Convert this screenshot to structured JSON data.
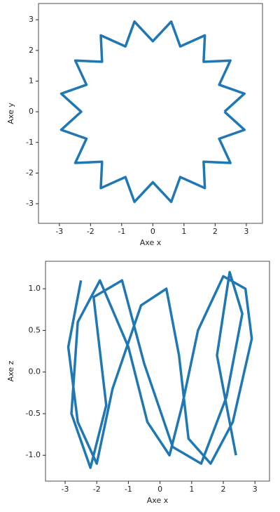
{
  "chart_data": [
    {
      "type": "line",
      "xlabel": "Axe x",
      "ylabel": "Axe y",
      "xlim": [
        -3.67,
        3.52
      ],
      "ylim": [
        -3.64,
        3.53
      ],
      "xticks": [
        -3,
        -2,
        -1,
        0,
        1,
        2,
        3
      ],
      "yticks": [
        -3,
        -2,
        -1,
        0,
        1,
        2,
        3
      ],
      "x": [
        2.3,
        2.94,
        2.13,
        2.49,
        1.63,
        1.67,
        0.88,
        0.59,
        0,
        -0.59,
        -0.88,
        -1.67,
        -1.63,
        -2.49,
        -2.13,
        -2.94,
        -2.3,
        -2.94,
        -2.13,
        -2.49,
        -1.63,
        -1.67,
        -0.88,
        -0.59,
        0,
        0.59,
        0.88,
        1.67,
        1.63,
        2.49,
        2.13,
        2.94,
        2.3
      ],
      "series": [
        {
          "color": "#1f77b4",
          "values": [
            0,
            0.59,
            0.88,
            1.67,
            1.63,
            2.49,
            2.13,
            2.94,
            2.3,
            2.94,
            2.13,
            2.49,
            1.63,
            1.67,
            0.88,
            0.59,
            0,
            -0.59,
            -0.88,
            -1.67,
            -1.63,
            -2.49,
            -2.13,
            -2.94,
            -2.3,
            -2.94,
            -2.13,
            -2.49,
            -1.63,
            -1.67,
            -0.88,
            -0.59,
            0
          ]
        }
      ]
    },
    {
      "type": "line",
      "xlabel": "Axe x",
      "ylabel": "Axe z",
      "xlim": [
        -3.62,
        3.46
      ],
      "ylim": [
        -1.31,
        1.33
      ],
      "xticks": [
        -3,
        -2,
        -1,
        0,
        1,
        2,
        3
      ],
      "yticks": [
        {
          "value": -1,
          "label": "-1.0"
        },
        -0.5,
        {
          "value": 0,
          "label": "0.0"
        },
        0.5,
        {
          "value": 1,
          "label": "1.0"
        }
      ],
      "x": [
        -2.5,
        -2.9,
        -2.6,
        -2.0,
        -1.5,
        -0.6,
        0.2,
        0.6,
        0.9,
        1.6,
        2.3,
        2.9,
        2.7,
        2.0,
        1.2,
        0.7,
        0.3,
        -0.4,
        -1.0,
        -1.9,
        -2.6,
        -2.8,
        -2.2,
        -1.7,
        -2.1,
        -1.2,
        -0.5,
        0.4,
        1.3,
        2.1,
        2.6,
        2.2,
        1.8,
        2.4
      ],
      "series": [
        {
          "color": "#1f77b4",
          "values": [
            1.1,
            0.3,
            -0.6,
            -1.1,
            -0.2,
            0.8,
            1.0,
            0.2,
            -0.8,
            -1.1,
            -0.6,
            0.4,
            1.0,
            1.15,
            0.5,
            -0.4,
            -1.0,
            -0.6,
            0.3,
            1.1,
            0.6,
            -0.5,
            -1.15,
            -0.4,
            0.9,
            1.1,
            0.1,
            -0.9,
            -1.1,
            -0.3,
            0.7,
            1.2,
            0.2,
            -1.0
          ]
        }
      ]
    }
  ]
}
